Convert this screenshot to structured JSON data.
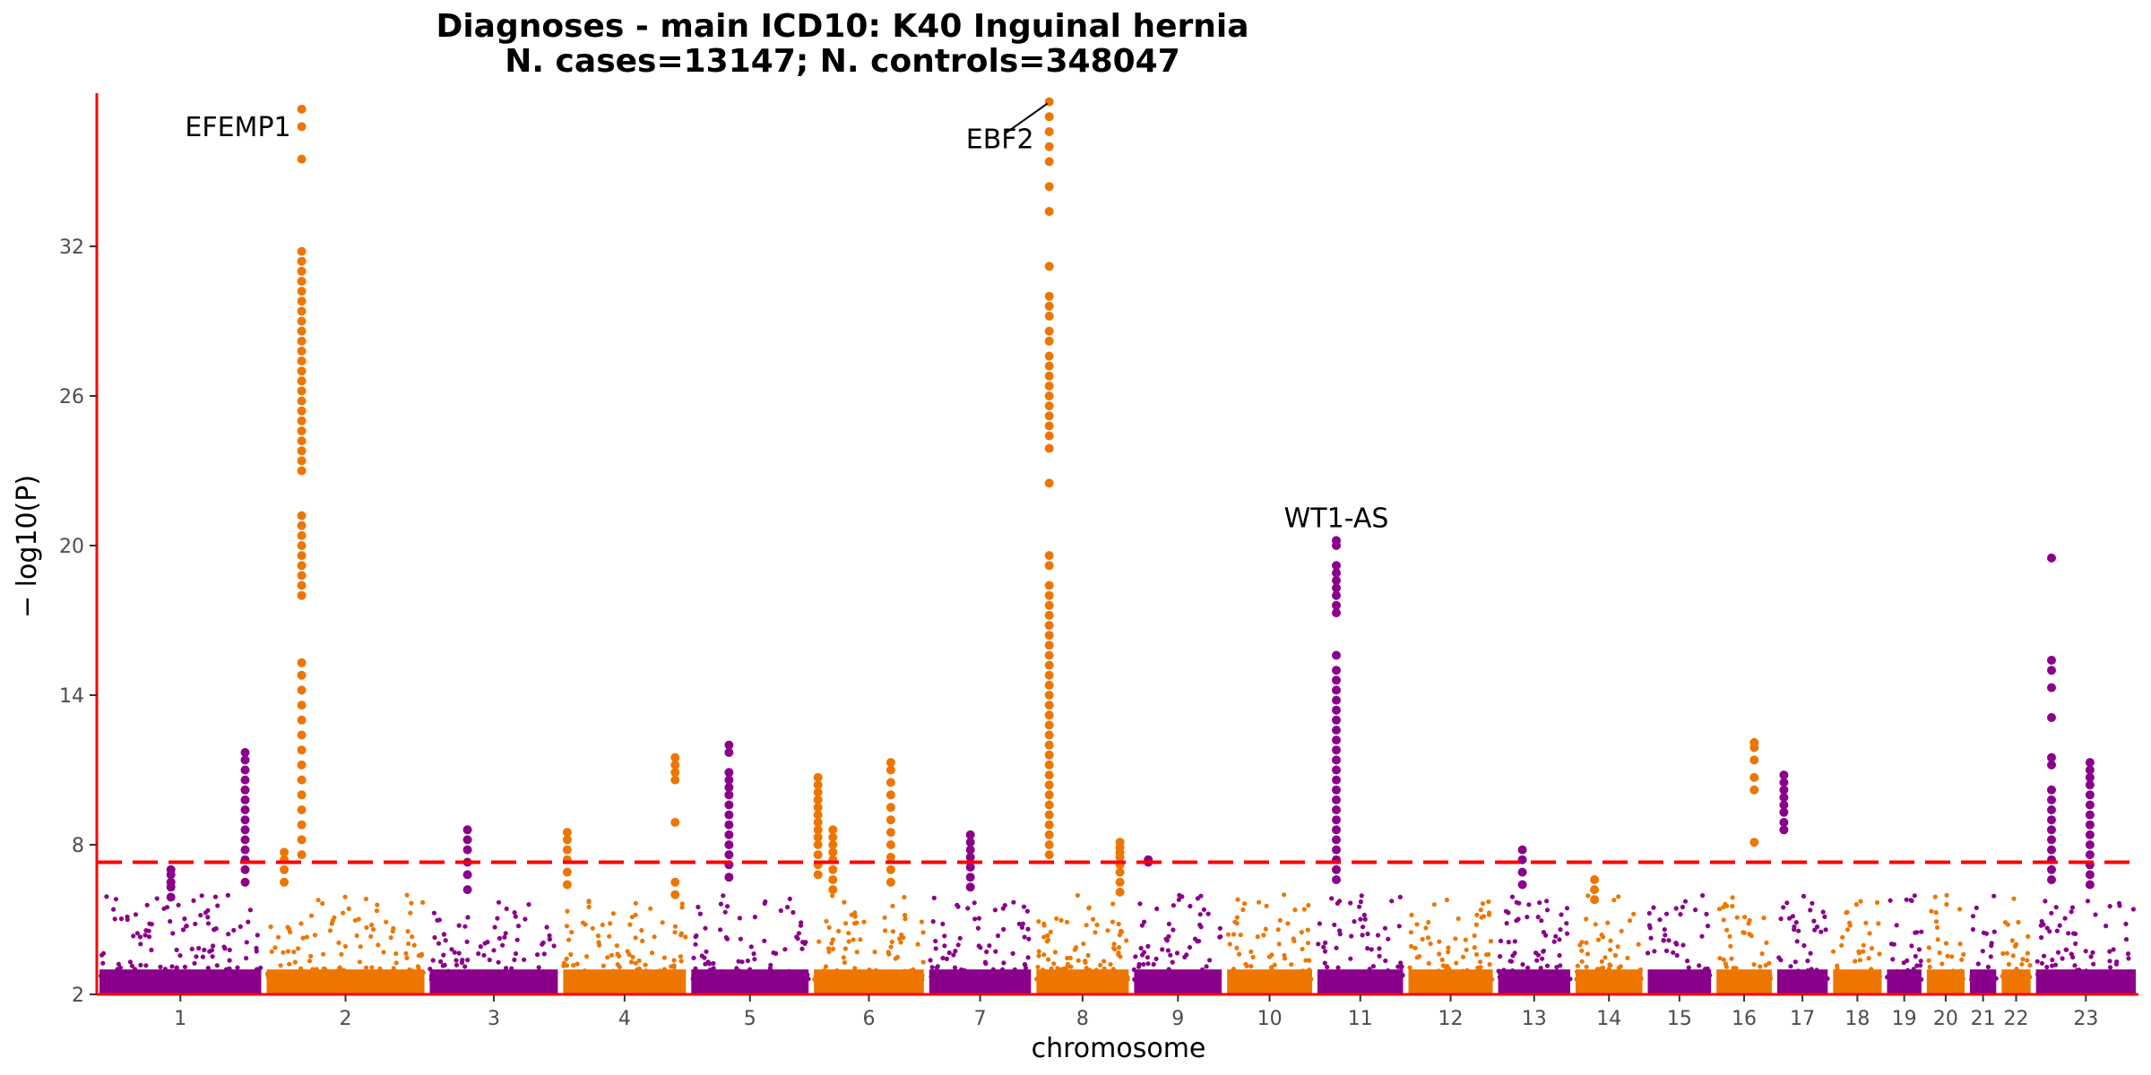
{
  "chart_data": {
    "type": "scatter",
    "title_line1": "Diagnoses - main ICD10: K40 Inguinal hernia",
    "title_line2": "N. cases=13147; N. controls=348047",
    "xlabel": "chromosome",
    "ylabel": "− log10(P)",
    "ylim": [
      2,
      38
    ],
    "yticks": [
      2,
      8,
      14,
      20,
      26,
      32
    ],
    "significance_threshold": 7.3,
    "colors": {
      "odd": "#8b008b",
      "even": "#ee7600",
      "threshold": "#ff0000",
      "axis": "#ff0000"
    },
    "chromosomes": [
      {
        "label": "1",
        "start": 0,
        "end": 248
      },
      {
        "label": "2",
        "start": 248,
        "end": 490
      },
      {
        "label": "3",
        "start": 490,
        "end": 688
      },
      {
        "label": "4",
        "start": 688,
        "end": 878
      },
      {
        "label": "5",
        "start": 878,
        "end": 1060
      },
      {
        "label": "6",
        "start": 1060,
        "end": 1231
      },
      {
        "label": "7",
        "start": 1231,
        "end": 1390
      },
      {
        "label": "8",
        "start": 1390,
        "end": 1535
      },
      {
        "label": "9",
        "start": 1535,
        "end": 1673
      },
      {
        "label": "10",
        "start": 1673,
        "end": 1807
      },
      {
        "label": "11",
        "start": 1807,
        "end": 1942
      },
      {
        "label": "12",
        "start": 1942,
        "end": 2075
      },
      {
        "label": "13",
        "start": 2075,
        "end": 2190
      },
      {
        "label": "14",
        "start": 2190,
        "end": 2297
      },
      {
        "label": "15",
        "start": 2297,
        "end": 2399
      },
      {
        "label": "16",
        "start": 2399,
        "end": 2489
      },
      {
        "label": "17",
        "start": 2489,
        "end": 2572
      },
      {
        "label": "18",
        "start": 2572,
        "end": 2652
      },
      {
        "label": "19",
        "start": 2652,
        "end": 2711
      },
      {
        "label": "20",
        "start": 2711,
        "end": 2775
      },
      {
        "label": "21",
        "start": 2775,
        "end": 2822
      },
      {
        "label": "22",
        "start": 2822,
        "end": 2873
      },
      {
        "label": "23",
        "start": 2873,
        "end": 3029
      }
    ],
    "peaks": [
      {
        "chr": "1",
        "pos": 110,
        "values": [
          7.0,
          6.8,
          6.5,
          6.3,
          5.9
        ]
      },
      {
        "chr": "1",
        "pos": 220,
        "values": [
          11.7,
          11.4,
          11.0,
          10.6,
          10.2,
          9.8,
          9.4,
          9.0,
          8.6,
          8.2,
          7.8,
          7.4,
          7.0,
          6.5
        ]
      },
      {
        "chr": "2",
        "pos": 30,
        "values": [
          7.7,
          7.4,
          7.0,
          6.5
        ]
      },
      {
        "chr": "2",
        "pos": 56,
        "values": [
          37.5,
          36.8,
          35.5,
          31.8,
          31.4,
          31.0,
          30.6,
          30.2,
          29.8,
          29.4,
          29.0,
          28.6,
          28.2,
          27.8,
          27.4,
          27.0,
          26.6,
          26.2,
          25.8,
          25.4,
          25.0,
          24.6,
          24.2,
          23.8,
          23.4,
          23.0,
          21.2,
          20.8,
          20.4,
          20.0,
          19.6,
          19.2,
          18.8,
          18.4,
          18.0,
          15.3,
          14.8,
          14.2,
          13.6,
          13.0,
          12.4,
          11.8,
          11.2,
          10.6,
          10.0,
          9.4,
          8.8,
          8.2,
          7.6
        ]
      },
      {
        "chr": "3",
        "pos": 60,
        "values": [
          8.6,
          8.2,
          7.8,
          7.3,
          6.8,
          6.2
        ]
      },
      {
        "chr": "4",
        "pos": 10,
        "values": [
          8.5,
          8.2,
          7.8,
          7.4,
          6.9,
          6.4
        ]
      },
      {
        "chr": "4",
        "pos": 170,
        "values": [
          11.5,
          11.2,
          10.9,
          10.6,
          8.9,
          6.5,
          6.0
        ]
      },
      {
        "chr": "5",
        "pos": 60,
        "values": [
          12.0,
          11.7,
          10.9,
          10.6,
          10.3,
          10.0,
          9.6,
          9.2,
          8.8,
          8.4,
          8.0,
          7.6,
          7.2,
          6.7
        ]
      },
      {
        "chr": "6",
        "pos": 10,
        "values": [
          10.7,
          10.4,
          10.1,
          9.8,
          9.5,
          9.2,
          8.9,
          8.6,
          8.3,
          8.0,
          7.6,
          7.2,
          6.8
        ]
      },
      {
        "chr": "6",
        "pos": 32,
        "values": [
          8.6,
          8.3,
          8.0,
          7.7,
          7.4,
          7.0,
          6.6,
          6.2
        ]
      },
      {
        "chr": "6",
        "pos": 118,
        "values": [
          11.3,
          11.0,
          10.5,
          10.0,
          9.5,
          9.0,
          8.5,
          8.0,
          7.5,
          7.0,
          6.5
        ]
      },
      {
        "chr": "7",
        "pos": 65,
        "values": [
          8.4,
          8.1,
          7.8,
          7.5,
          7.1,
          6.7,
          6.3
        ]
      },
      {
        "chr": "8",
        "pos": 23,
        "values": [
          37.8,
          37.2,
          36.6,
          36.0,
          35.4,
          34.4,
          33.4,
          31.2,
          30.0,
          29.6,
          29.2,
          28.6,
          28.2,
          27.6,
          27.2,
          26.8,
          26.4,
          26.0,
          25.6,
          25.2,
          24.8,
          24.4,
          23.9,
          22.5,
          19.6,
          19.2,
          18.4,
          18.0,
          17.6,
          17.2,
          16.8,
          16.4,
          16.0,
          15.6,
          15.2,
          14.8,
          14.4,
          14.0,
          13.6,
          13.2,
          12.8,
          12.4,
          12.0,
          11.6,
          11.2,
          10.8,
          10.4,
          10.0,
          9.6,
          9.2,
          8.8,
          8.4,
          8.0,
          7.6
        ]
      },
      {
        "chr": "8",
        "pos": 128,
        "values": [
          8.1,
          7.9,
          7.7,
          7.5,
          7.2,
          6.9,
          6.5,
          6.1
        ]
      },
      {
        "chr": "9",
        "pos": 25,
        "values": [
          7.4,
          7.3
        ]
      },
      {
        "chr": "11",
        "pos": 32,
        "values": [
          20.2,
          20.0,
          19.2,
          18.9,
          18.6,
          18.3,
          18.0,
          17.6,
          17.3,
          15.6,
          15.0,
          14.6,
          14.2,
          13.8,
          13.4,
          13.0,
          12.6,
          12.2,
          11.8,
          11.4,
          11.0,
          10.6,
          10.2,
          9.8,
          9.4,
          9.0,
          8.6,
          8.2,
          7.8,
          7.4,
          7.0,
          6.6
        ]
      },
      {
        "chr": "13",
        "pos": 40,
        "values": [
          7.8,
          7.4,
          6.9,
          6.4
        ]
      },
      {
        "chr": "14",
        "pos": 32,
        "values": [
          6.6,
          6.2,
          5.8
        ]
      },
      {
        "chr": "16",
        "pos": 60,
        "values": [
          12.1,
          11.9,
          11.4,
          10.7,
          10.2,
          8.1
        ]
      },
      {
        "chr": "17",
        "pos": 14,
        "values": [
          10.8,
          10.5,
          10.2,
          9.9,
          9.6,
          9.3,
          8.9,
          8.6
        ]
      },
      {
        "chr": "23",
        "pos": 27,
        "values": [
          19.5,
          15.4,
          15.0,
          14.3,
          13.1,
          11.5,
          11.2,
          10.2,
          9.8,
          9.4,
          9.0,
          8.6,
          8.2,
          7.8,
          7.4,
          7.0,
          6.6
        ]
      },
      {
        "chr": "23",
        "pos": 84,
        "values": [
          11.3,
          11.0,
          10.7,
          10.4,
          10.0,
          9.6,
          9.2,
          8.8,
          8.4,
          8.0,
          7.6,
          7.2,
          6.8,
          6.4
        ]
      }
    ],
    "annotations": [
      {
        "label": "EFEMP1",
        "chr": "2",
        "pos": 56,
        "value": 37.5
      },
      {
        "label": "EBF2",
        "chr": "8",
        "pos": 23,
        "value": 37.8
      },
      {
        "label": "WT1-AS",
        "chr": "11",
        "pos": 32,
        "value": 20.2
      }
    ]
  }
}
